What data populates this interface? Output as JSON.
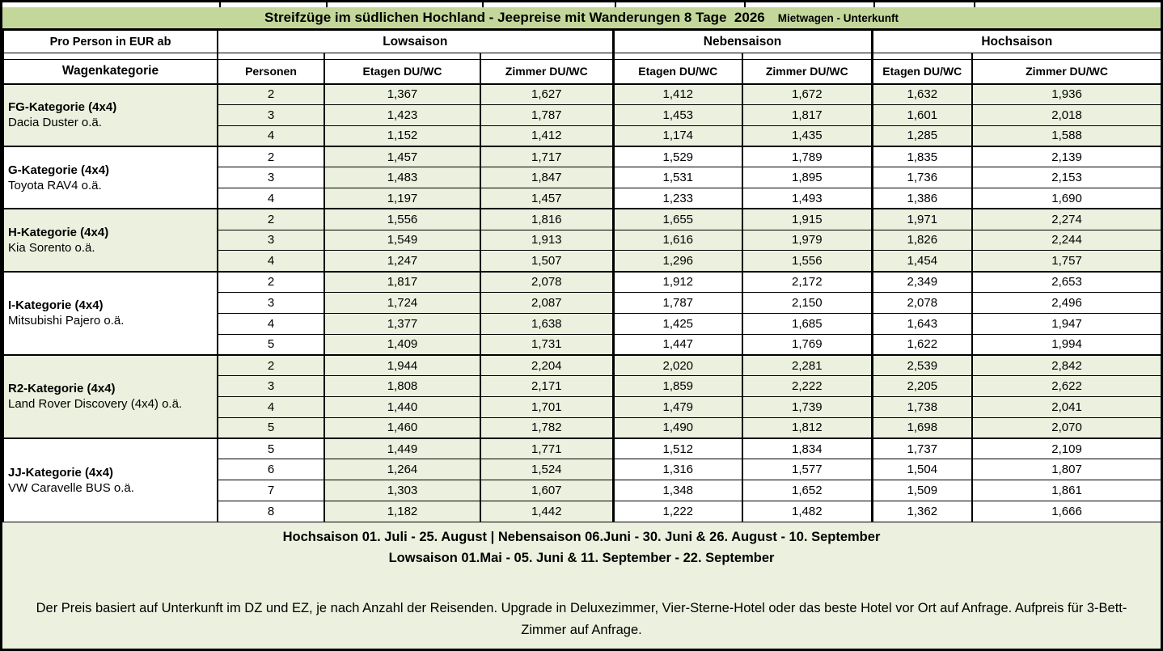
{
  "title": {
    "main": "Streifzüge im südlichen Hochland - Jeepreise mit Wanderungen 8 Tage  2026",
    "sub": "Mietwagen - Unterkunft"
  },
  "header": {
    "pro_person": "Pro Person in EUR ab",
    "wagenkategorie": "Wagenkategorie",
    "personen": "Personen",
    "etagen": "Etagen DU/WC",
    "zimmer": "Zimmer DU/WC",
    "seasons": [
      "Lowsaison",
      "Nebensaison",
      "Hochsaison"
    ]
  },
  "categories": [
    {
      "name": "FG-Kategorie (4x4)",
      "vehicle": "Dacia Duster o.ä.",
      "highlight": true,
      "rows": [
        {
          "persons": "2",
          "prices": [
            "1,367",
            "1,627",
            "1,412",
            "1,672",
            "1,632",
            "1,936"
          ]
        },
        {
          "persons": "3",
          "prices": [
            "1,423",
            "1,787",
            "1,453",
            "1,817",
            "1,601",
            "2,018"
          ]
        },
        {
          "persons": "4",
          "prices": [
            "1,152",
            "1,412",
            "1,174",
            "1,435",
            "1,285",
            "1,588"
          ]
        }
      ]
    },
    {
      "name": "G-Kategorie (4x4)",
      "vehicle": "Toyota RAV4 o.ä.",
      "highlight": false,
      "rows": [
        {
          "persons": "2",
          "prices": [
            "1,457",
            "1,717",
            "1,529",
            "1,789",
            "1,835",
            "2,139"
          ]
        },
        {
          "persons": "3",
          "prices": [
            "1,483",
            "1,847",
            "1,531",
            "1,895",
            "1,736",
            "2,153"
          ]
        },
        {
          "persons": "4",
          "prices": [
            "1,197",
            "1,457",
            "1,233",
            "1,493",
            "1,386",
            "1,690"
          ]
        }
      ]
    },
    {
      "name": "H-Kategorie (4x4)",
      "vehicle": "Kia Sorento o.ä.",
      "highlight": true,
      "rows": [
        {
          "persons": "2",
          "prices": [
            "1,556",
            "1,816",
            "1,655",
            "1,915",
            "1,971",
            "2,274"
          ]
        },
        {
          "persons": "3",
          "prices": [
            "1,549",
            "1,913",
            "1,616",
            "1,979",
            "1,826",
            "2,244"
          ]
        },
        {
          "persons": "4",
          "prices": [
            "1,247",
            "1,507",
            "1,296",
            "1,556",
            "1,454",
            "1,757"
          ]
        }
      ]
    },
    {
      "name": "I-Kategorie (4x4)",
      "vehicle": "Mitsubishi Pajero o.ä.",
      "highlight": false,
      "rows": [
        {
          "persons": "2",
          "prices": [
            "1,817",
            "2,078",
            "1,912",
            "2,172",
            "2,349",
            "2,653"
          ]
        },
        {
          "persons": "3",
          "prices": [
            "1,724",
            "2,087",
            "1,787",
            "2,150",
            "2,078",
            "2,496"
          ]
        },
        {
          "persons": "4",
          "prices": [
            "1,377",
            "1,638",
            "1,425",
            "1,685",
            "1,643",
            "1,947"
          ]
        },
        {
          "persons": "5",
          "prices": [
            "1,409",
            "1,731",
            "1,447",
            "1,769",
            "1,622",
            "1,994"
          ]
        }
      ]
    },
    {
      "name": "R2-Kategorie (4x4)",
      "vehicle": "Land Rover Discovery  (4x4) o.ä.",
      "highlight": true,
      "rows": [
        {
          "persons": "2",
          "prices": [
            "1,944",
            "2,204",
            "2,020",
            "2,281",
            "2,539",
            "2,842"
          ]
        },
        {
          "persons": "3",
          "prices": [
            "1,808",
            "2,171",
            "1,859",
            "2,222",
            "2,205",
            "2,622"
          ]
        },
        {
          "persons": "4",
          "prices": [
            "1,440",
            "1,701",
            "1,479",
            "1,739",
            "1,738",
            "2,041"
          ]
        },
        {
          "persons": "5",
          "prices": [
            "1,460",
            "1,782",
            "1,490",
            "1,812",
            "1,698",
            "2,070"
          ]
        }
      ]
    },
    {
      "name": "JJ-Kategorie (4x4)",
      "vehicle": "VW Caravelle BUS o.ä.",
      "highlight": false,
      "rows": [
        {
          "persons": "5",
          "prices": [
            "1,449",
            "1,771",
            "1,512",
            "1,834",
            "1,737",
            "2,109"
          ]
        },
        {
          "persons": "6",
          "prices": [
            "1,264",
            "1,524",
            "1,316",
            "1,577",
            "1,504",
            "1,807"
          ]
        },
        {
          "persons": "7",
          "prices": [
            "1,303",
            "1,607",
            "1,348",
            "1,652",
            "1,509",
            "1,861"
          ]
        },
        {
          "persons": "8",
          "prices": [
            "1,182",
            "1,442",
            "1,222",
            "1,482",
            "1,362",
            "1,666"
          ]
        }
      ]
    }
  ],
  "footer": {
    "season_line1": "Hochsaison 01. Juli - 25. August | Nebensaison 06.Juni - 30. Juni & 26. August - 10. September",
    "season_line2": "Lowsaison 01.Mai - 05. Juni  & 11. September - 22. September",
    "note": "Der Preis basiert auf Unterkunft im DZ und EZ, je nach Anzahl der Reisenden. Upgrade in Deluxezimmer, Vier-Sterne-Hotel oder das beste Hotel vor Ort auf Anfrage. Aufpreis für 3-Bett-Zimmer auf Anfrage."
  },
  "colors": {
    "title_green": "#c4d79b",
    "cell_green": "#ebf1de",
    "border": "#000000"
  }
}
